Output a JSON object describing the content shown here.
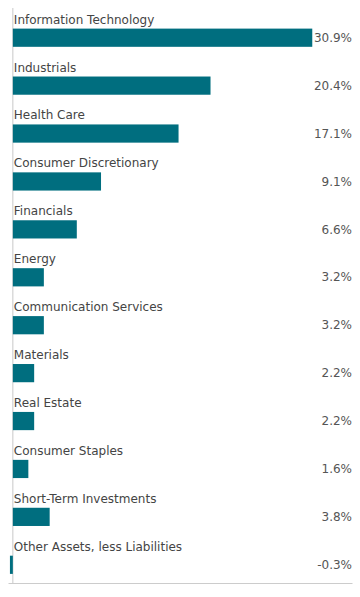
{
  "chart_data": {
    "type": "bar",
    "orientation": "horizontal",
    "categories": [
      "Other Assets, less Liabilities",
      "Short-Term Investments",
      "Consumer Staples",
      "Real Estate",
      "Materials",
      "Communication Services",
      "Energy",
      "Financials",
      "Consumer Discretionary",
      "Health Care",
      "Industrials",
      "Information Technology"
    ],
    "values": [
      -0.3,
      3.8,
      1.6,
      2.2,
      2.2,
      3.2,
      3.2,
      6.6,
      9.1,
      17.1,
      20.4,
      30.9
    ],
    "value_labels": [
      "-0.3%",
      "3.8%",
      "1.6%",
      "2.2%",
      "2.2%",
      "3.2%",
      "3.2%",
      "6.6%",
      "9.1%",
      "17.1%",
      "20.4%",
      "30.9%"
    ],
    "data_labels": true,
    "color": "#006e7f",
    "xlim": [
      -0.5,
      35
    ],
    "tick_labels": false,
    "grid": false
  }
}
